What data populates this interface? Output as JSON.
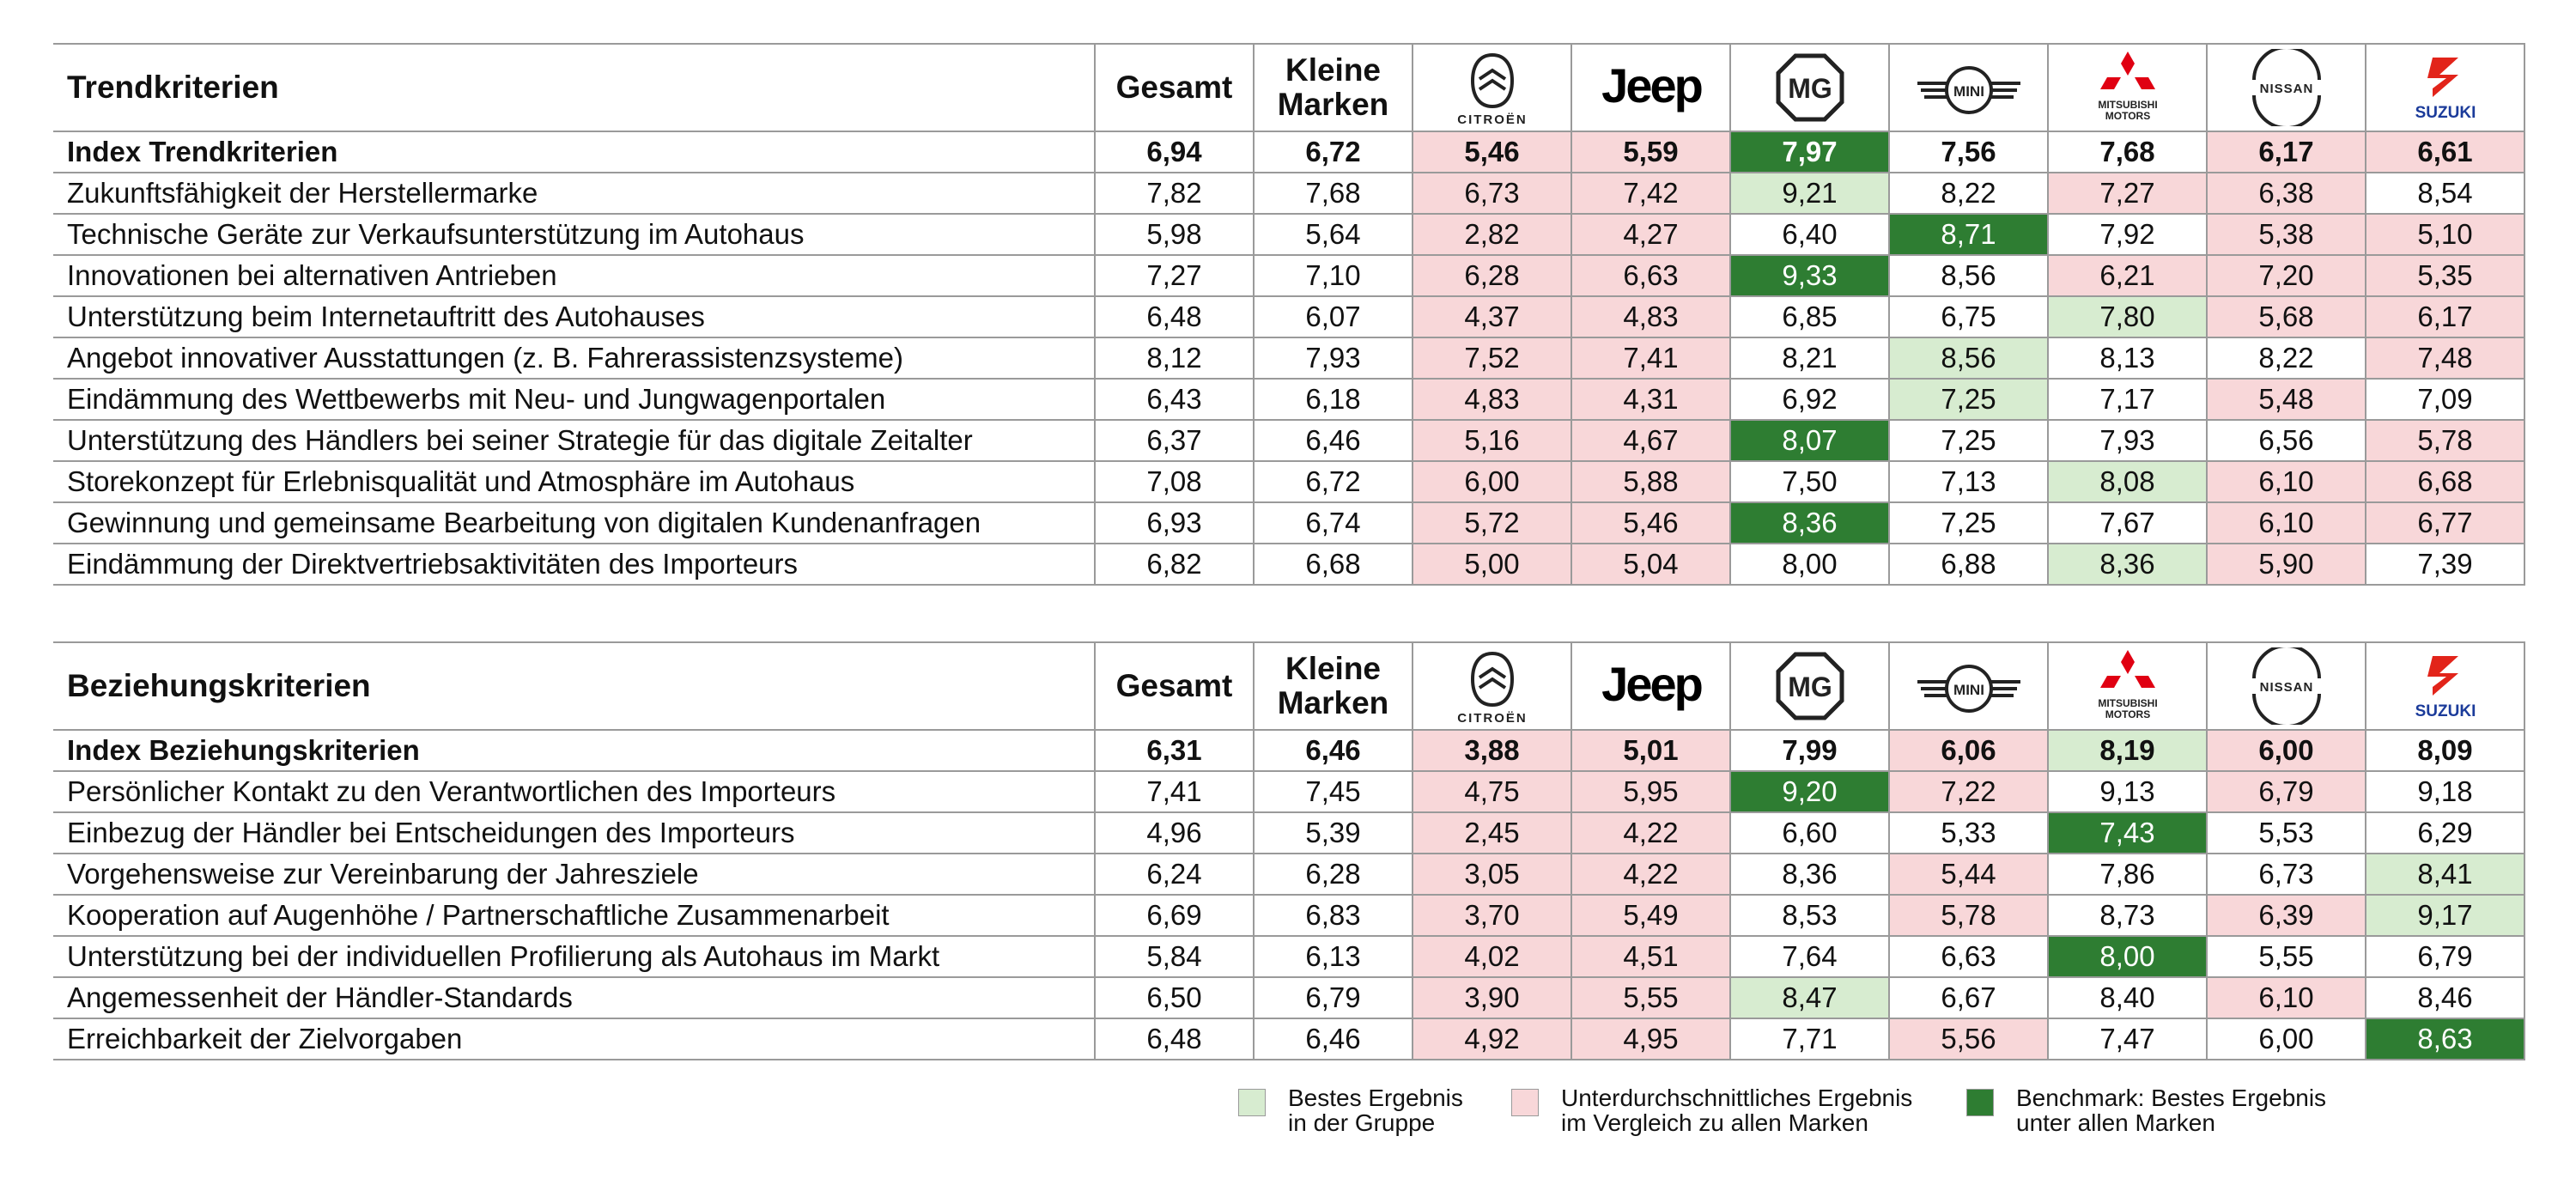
{
  "colors": {
    "best_in_group": "#d7ecd0",
    "below_average": "#f8d7d9",
    "benchmark": "#2e7d32"
  },
  "columns": {
    "gesamt": "Gesamt",
    "kleine_marken": "Kleine\nMarken",
    "brands": [
      {
        "key": "citroen",
        "logo": "citroen-logo",
        "wordmark": "CITROËN"
      },
      {
        "key": "jeep",
        "logo": "jeep-logo",
        "wordmark": "Jeep"
      },
      {
        "key": "mg",
        "logo": "mg-logo",
        "wordmark": "MG"
      },
      {
        "key": "mini",
        "logo": "mini-logo",
        "wordmark": "MINI"
      },
      {
        "key": "mitsubishi",
        "logo": "mitsubishi-logo",
        "wordmark": "MITSUBISHI\nMOTORS"
      },
      {
        "key": "nissan",
        "logo": "nissan-logo",
        "wordmark": "NISSAN"
      },
      {
        "key": "suzuki",
        "logo": "suzuki-logo",
        "wordmark": "SUZUKI"
      }
    ]
  },
  "chart_data": [
    {
      "type": "table",
      "title": "Trendkriterien",
      "columns": [
        "Gesamt",
        "Kleine Marken",
        "Citroën",
        "Jeep",
        "MG",
        "MINI",
        "Mitsubishi",
        "Nissan",
        "Suzuki"
      ],
      "rows": [
        {
          "label": "Index Trendkriterien",
          "bold": true,
          "values": [
            "6,94",
            "6,72",
            "5,46",
            "5,59",
            "7,97",
            "7,56",
            "7,68",
            "6,17",
            "6,61"
          ],
          "marks": [
            "",
            "",
            "red",
            "red",
            "dark",
            "",
            "",
            "red",
            "red"
          ]
        },
        {
          "label": "Zukunftsfähigkeit der Herstellermarke",
          "values": [
            "7,82",
            "7,68",
            "6,73",
            "7,42",
            "9,21",
            "8,22",
            "7,27",
            "6,38",
            "8,54"
          ],
          "marks": [
            "",
            "",
            "red",
            "red",
            "light",
            "",
            "red",
            "red",
            ""
          ]
        },
        {
          "label": "Technische Geräte zur Verkaufsunterstützung im Autohaus",
          "values": [
            "5,98",
            "5,64",
            "2,82",
            "4,27",
            "6,40",
            "8,71",
            "7,92",
            "5,38",
            "5,10"
          ],
          "marks": [
            "",
            "",
            "red",
            "red",
            "",
            "dark",
            "",
            "red",
            "red"
          ]
        },
        {
          "label": "Innovationen bei alternativen Antrieben",
          "values": [
            "7,27",
            "7,10",
            "6,28",
            "6,63",
            "9,33",
            "8,56",
            "6,21",
            "7,20",
            "5,35"
          ],
          "marks": [
            "",
            "",
            "red",
            "red",
            "dark",
            "",
            "red",
            "red",
            "red"
          ]
        },
        {
          "label": "Unterstützung beim Internetauftritt des Autohauses",
          "values": [
            "6,48",
            "6,07",
            "4,37",
            "4,83",
            "6,85",
            "6,75",
            "7,80",
            "5,68",
            "6,17"
          ],
          "marks": [
            "",
            "",
            "red",
            "red",
            "",
            "",
            "light",
            "red",
            "red"
          ]
        },
        {
          "label": "Angebot innovativer Ausstattungen (z. B. Fahrerassistenzsysteme)",
          "values": [
            "8,12",
            "7,93",
            "7,52",
            "7,41",
            "8,21",
            "8,56",
            "8,13",
            "8,22",
            "7,48"
          ],
          "marks": [
            "",
            "",
            "red",
            "red",
            "",
            "light",
            "",
            "",
            "red"
          ]
        },
        {
          "label": "Eindämmung des Wettbewerbs mit Neu- und Jungwagenportalen",
          "values": [
            "6,43",
            "6,18",
            "4,83",
            "4,31",
            "6,92",
            "7,25",
            "7,17",
            "5,48",
            ""
          ],
          "marks": [
            "",
            "",
            "red",
            "red",
            "",
            "light",
            "",
            "red",
            ""
          ]
        },
        {
          "label": "Unterstützung des Händlers bei seiner Strategie für das digitale Zeitalter",
          "values": [
            "6,37",
            "6,46",
            "5,16",
            "4,67",
            "8,07",
            "7,25",
            "7,93",
            "6,56",
            "5,78"
          ],
          "marks": [
            "",
            "",
            "red",
            "red",
            "dark",
            "",
            "",
            "",
            "red"
          ]
        },
        {
          "label": "Storekonzept für Erlebnisqualität und Atmosphäre im Autohaus",
          "values": [
            "7,08",
            "6,72",
            "6,00",
            "5,88",
            "7,50",
            "7,13",
            "8,08",
            "6,10",
            "6,68"
          ],
          "marks": [
            "",
            "",
            "red",
            "red",
            "",
            "",
            "light",
            "red",
            "red"
          ]
        },
        {
          "label": "Gewinnung und gemeinsame Bearbeitung von digitalen Kundenanfragen",
          "values": [
            "6,93",
            "6,74",
            "5,72",
            "5,46",
            "8,36",
            "7,25",
            "7,67",
            "6,10",
            "6,77"
          ],
          "marks": [
            "",
            "",
            "red",
            "red",
            "dark",
            "",
            "",
            "red",
            "red"
          ]
        },
        {
          "label": "Eindämmung der Direktvertriebsaktivitäten des Importeurs",
          "values": [
            "6,82",
            "6,68",
            "5,00",
            "5,04",
            "8,00",
            "6,88",
            "8,36",
            "5,90",
            "7,39"
          ],
          "marks": [
            "",
            "",
            "red",
            "red",
            "",
            "",
            "light",
            "red",
            ""
          ]
        }
      ]
    },
    {
      "type": "table",
      "title": "Beziehungskriterien",
      "columns": [
        "Gesamt",
        "Kleine Marken",
        "Citroën",
        "Jeep",
        "MG",
        "MINI",
        "Mitsubishi",
        "Nissan",
        "Suzuki"
      ],
      "rows": [
        {
          "label": "Index Beziehungskriterien",
          "bold": true,
          "values": [
            "6,31",
            "6,46",
            "3,88",
            "5,01",
            "7,99",
            "6,06",
            "8,19",
            "6,00",
            "8,09"
          ],
          "marks": [
            "",
            "",
            "red",
            "red",
            "",
            "red",
            "light",
            "red",
            ""
          ]
        },
        {
          "label": "Persönlicher Kontakt zu den Verantwortlichen des Importeurs",
          "values": [
            "7,41",
            "7,45",
            "4,75",
            "5,95",
            "9,20",
            "7,22",
            "9,13",
            "6,79",
            "9,18"
          ],
          "marks": [
            "",
            "",
            "red",
            "red",
            "dark",
            "red",
            "",
            "red",
            ""
          ]
        },
        {
          "label": "Einbezug der Händler bei Entscheidungen des Importeurs",
          "values": [
            "4,96",
            "5,39",
            "2,45",
            "4,22",
            "6,60",
            "5,33",
            "7,43",
            "5,53",
            "6,29"
          ],
          "marks": [
            "",
            "",
            "red",
            "red",
            "",
            "",
            "dark",
            "",
            ""
          ]
        },
        {
          "label": "Vorgehensweise zur Vereinbarung der Jahresziele",
          "values": [
            "6,24",
            "6,28",
            "3,05",
            "4,22",
            "8,36",
            "5,44",
            "7,86",
            "6,73",
            "8,41"
          ],
          "marks": [
            "",
            "",
            "red",
            "red",
            "",
            "red",
            "",
            "",
            "light"
          ]
        },
        {
          "label": "Kooperation auf Augenhöhe / Partnerschaftliche Zusammenarbeit",
          "values": [
            "6,69",
            "6,83",
            "3,70",
            "5,49",
            "8,53",
            "5,78",
            "8,73",
            "6,39",
            "9,17"
          ],
          "marks": [
            "",
            "",
            "red",
            "red",
            "",
            "red",
            "",
            "red",
            "light"
          ]
        },
        {
          "label": "Unterstützung bei der individuellen Profilierung als Autohaus im Markt",
          "values": [
            "5,84",
            "6,13",
            "4,02",
            "4,51",
            "7,64",
            "6,63",
            "8,00",
            "5,55",
            "6,79"
          ],
          "marks": [
            "",
            "",
            "red",
            "red",
            "",
            "",
            "dark",
            "",
            ""
          ]
        },
        {
          "label": "Angemessenheit der Händler-Standards",
          "values": [
            "6,50",
            "6,79",
            "3,90",
            "5,55",
            "8,47",
            "6,67",
            "8,40",
            "6,10",
            "8,46"
          ],
          "marks": [
            "",
            "",
            "red",
            "red",
            "light",
            "",
            "",
            "red",
            ""
          ]
        },
        {
          "label": "Erreichbarkeit der Zielvorgaben",
          "values": [
            "6,48",
            "6,46",
            "4,92",
            "4,95",
            "7,71",
            "5,56",
            "7,47",
            "6,00",
            "8,63"
          ],
          "marks": [
            "",
            "",
            "red",
            "red",
            "",
            "red",
            "",
            "",
            "dark"
          ]
        }
      ]
    }
  ],
  "legend": [
    {
      "key": "light",
      "text": "Bestes Ergebnis\nin der Gruppe"
    },
    {
      "key": "red",
      "text": "Unterdurchschnittliches Ergebnis\nim Vergleich zu allen Marken"
    },
    {
      "key": "dark",
      "text": "Benchmark: Bestes Ergebnis\nunter allen Marken"
    }
  ]
}
